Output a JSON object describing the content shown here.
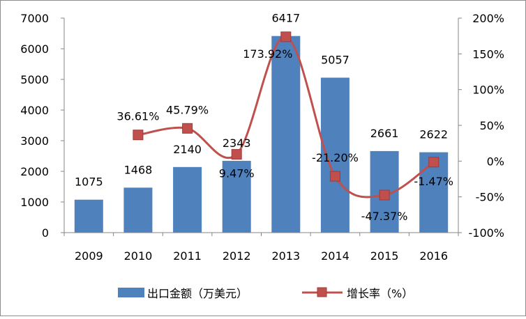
{
  "chart_data": {
    "type": "bar",
    "categories": [
      "2009",
      "2010",
      "2011",
      "2012",
      "2013",
      "2014",
      "2015",
      "2016"
    ],
    "series": [
      {
        "name": "出口金额（万美元）",
        "type": "bar",
        "axis": "left",
        "values": [
          1075,
          1468,
          2140,
          2343,
          6417,
          5057,
          2661,
          2622
        ],
        "labels": [
          "1075",
          "1468",
          "2140",
          "2343",
          "6417",
          "5057",
          "2661",
          "2622"
        ],
        "color": "#4f81bd"
      },
      {
        "name": "增长率（%）",
        "type": "line",
        "axis": "right",
        "values": [
          null,
          36.61,
          45.79,
          9.47,
          173.92,
          -21.2,
          -47.37,
          -1.47
        ],
        "labels": [
          "",
          "36.61%",
          "45.79%",
          "9.47%",
          "173.92%",
          "-21.20%",
          "-47.37%",
          "-1.47%"
        ],
        "color": "#c0504d",
        "smooth": true
      }
    ],
    "y_left": {
      "ylim": [
        0,
        7000
      ],
      "ticks": [
        0,
        1000,
        2000,
        3000,
        4000,
        5000,
        6000,
        7000
      ],
      "tick_labels": [
        "0",
        "1000",
        "2000",
        "3000",
        "4000",
        "5000",
        "6000",
        "7000"
      ]
    },
    "y_right": {
      "ylim": [
        -100,
        200
      ],
      "ticks": [
        -100,
        -50,
        0,
        50,
        100,
        150,
        200
      ],
      "tick_labels": [
        "-100%",
        "-50%",
        "0%",
        "50%",
        "100%",
        "150%",
        "200%"
      ]
    },
    "title": "",
    "xlabel": "",
    "ylabel": "",
    "grid": false,
    "legend": "bottom"
  }
}
